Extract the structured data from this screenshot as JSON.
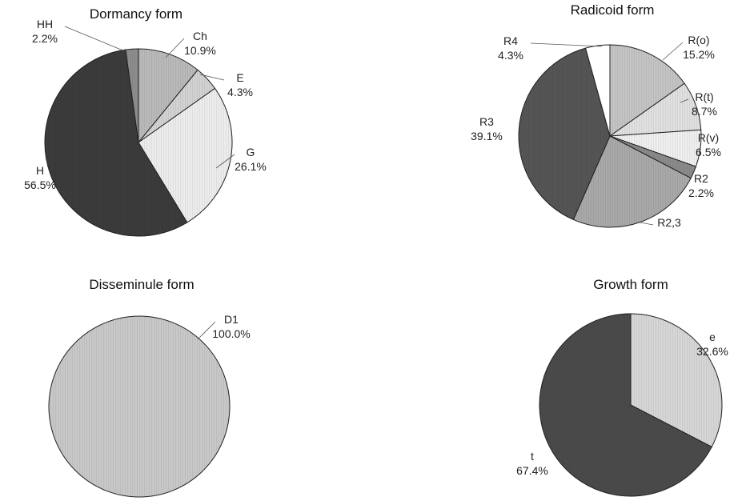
{
  "chart_data": [
    {
      "type": "pie",
      "title": "Dormancy form",
      "slices": [
        {
          "label": "Ch",
          "value": 10.9,
          "value_label": "10.9%",
          "color": "#b9b9b9"
        },
        {
          "label": "E",
          "value": 4.3,
          "value_label": "4.3%",
          "color": "#d2d2d2"
        },
        {
          "label": "G",
          "value": 26.1,
          "value_label": "26.1%",
          "color": "#ececec"
        },
        {
          "label": "H",
          "value": 56.5,
          "value_label": "56.5%",
          "color": "#3b3b3b"
        },
        {
          "label": "HH",
          "value": 2.2,
          "value_label": "2.2%",
          "color": "#8d8d8d"
        }
      ]
    },
    {
      "type": "pie",
      "title": "Radicoid form",
      "slices": [
        {
          "label": "R(o)",
          "value": 15.2,
          "value_label": "15.2%",
          "color": "#c4c4c4"
        },
        {
          "label": "R(t)",
          "value": 8.7,
          "value_label": "8.7%",
          "color": "#e0e0e0"
        },
        {
          "label": "R(v)",
          "value": 6.5,
          "value_label": "6.5%",
          "color": "#efefef"
        },
        {
          "label": "R2",
          "value": 2.2,
          "value_label": "2.2%",
          "color": "#8a8a8a"
        },
        {
          "label": "R2,3",
          "value": 23.9,
          "value_label": "",
          "color": "#a9a9a9"
        },
        {
          "label": "R3",
          "value": 39.1,
          "value_label": "39.1%",
          "color": "#555555"
        },
        {
          "label": "R4",
          "value": 4.3,
          "value_label": "4.3%",
          "color": "#ffffff"
        }
      ]
    },
    {
      "type": "pie",
      "title": "Disseminule form",
      "slices": [
        {
          "label": "D1",
          "value": 100.0,
          "value_label": "100.0%",
          "color": "#c8c8c8"
        }
      ]
    },
    {
      "type": "pie",
      "title": "Growth form",
      "slices": [
        {
          "label": "e",
          "value": 32.6,
          "value_label": "32.6%",
          "color": "#d6d6d6"
        },
        {
          "label": "t",
          "value": 67.4,
          "value_label": "67.4%",
          "color": "#4a4a4a"
        }
      ]
    }
  ]
}
